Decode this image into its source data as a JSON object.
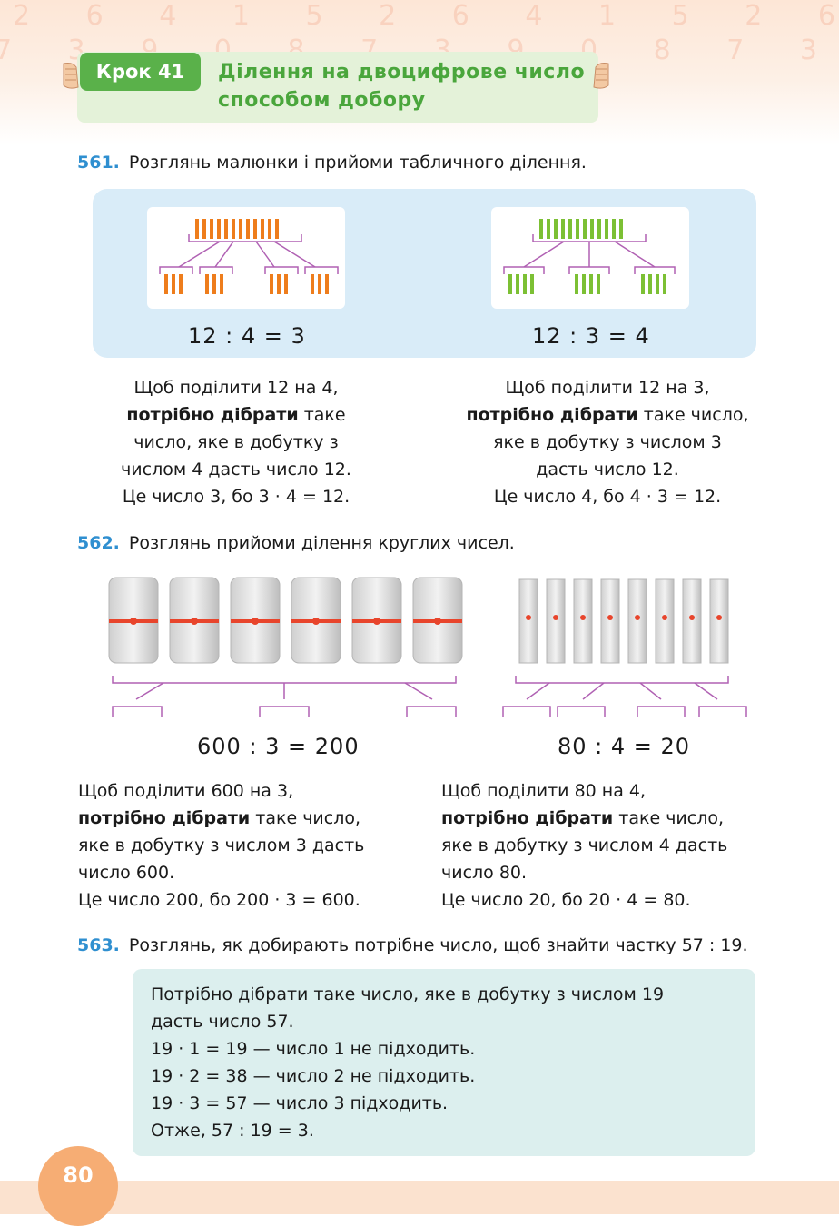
{
  "header": {
    "step_label": "Крок 41",
    "title_line1": "Ділення на двоцифрове число",
    "title_line2": "способом добору",
    "digit_row1": "2 6 4 1 5 2 6 4 1 5 2 6 4 1 5 2 6",
    "digit_row2": "7 3 9 0 8 7 3 9 0 8 7 3 9 0 8 7 3",
    "colors": {
      "badge": "#5ab14a",
      "title": "#4aa63c",
      "box": "#e4f2d9"
    }
  },
  "ex561": {
    "number": "561.",
    "text": "Розглянь малюнки і прийоми табличного ділення.",
    "left": {
      "equation": "12 : 4 = 3",
      "lines": [
        "Щоб поділити 12 на 4,",
        "потрібно дібрати",
        " таке",
        "число, яке в добутку з",
        "числом 4 дасть число 12.",
        "Це число 3, бо 3 · 4 = 12."
      ]
    },
    "right": {
      "equation": "12 : 3 = 4",
      "lines": [
        "Щоб поділити 12 на 3,",
        "потрібно дібрати",
        " таке число,",
        "яке в добутку з числом 3",
        "дасть число 12.",
        "Це число 4, бо 4 · 3 = 12."
      ]
    }
  },
  "ex562": {
    "number": "562.",
    "text": "Розглянь прийоми ділення круглих чисел.",
    "left": {
      "equation": "600 : 3 = 200",
      "lines": [
        "Щоб поділити 600 на 3,",
        "потрібно дібрати",
        " таке число,",
        "яке в добутку з числом 3 дасть",
        "число 600.",
        "Це число 200, бо 200 · 3 = 600."
      ]
    },
    "right": {
      "equation": "80 : 4 = 20",
      "lines": [
        "Щоб поділити 80 на 4,",
        "потрібно дібрати",
        " таке число,",
        "яке в добутку з числом 4 дасть",
        "число 80.",
        "Це число 20, бо 20 · 4 = 80."
      ]
    }
  },
  "ex563": {
    "number": "563.",
    "text": "Розглянь, як добирають потрібне число, щоб знайти частку 57 : 19.",
    "box_lines": [
      "Потрібно дібрати таке число, яке в добутку з числом 19",
      "дасть число 57.",
      "19 · 1 = 19 — число 1 не підходить.",
      "19 · 2 = 38 — число 2 не підходить.",
      "19 · 3 = 57 — число 3 підходить.",
      "Отже, 57 : 19 = 3."
    ]
  },
  "footer": {
    "page_number": "80"
  },
  "colors": {
    "exercise_number": "#2f8fd0",
    "orange_sticks": "#ee7d1c",
    "green_sticks": "#7cc034",
    "arrows": "#b061b3",
    "panel": "#d9ecf8",
    "final_box": "#dcefee"
  }
}
